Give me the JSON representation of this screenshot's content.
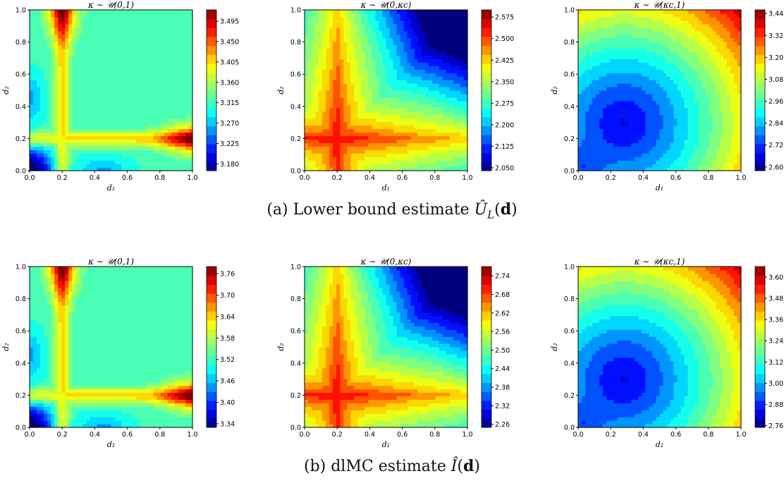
{
  "captions": {
    "a": {
      "label": "(a) Lower bound estimate ",
      "math": "Û",
      "sub": "L",
      "arg_open": "(",
      "arg": "d",
      "arg_close": ")"
    },
    "b": {
      "label": "(b) dlMC estimate ",
      "math": "Î",
      "sub": "",
      "arg_open": "(",
      "arg": "d",
      "arg_close": ")"
    }
  },
  "chart_data": [
    {
      "type": "heatmap",
      "row": "a",
      "col": 1,
      "title": "κ ∼ 𝒰(0,1)",
      "xlabel": "d₁",
      "ylabel": "d₂",
      "xlim": [
        0,
        1
      ],
      "ylim": [
        0,
        1
      ],
      "xticks": [
        "0.0",
        "0.2",
        "0.4",
        "0.6",
        "0.8",
        "1.0"
      ],
      "yticks": [
        "0.0",
        "0.2",
        "0.4",
        "0.6",
        "0.8",
        "1.0"
      ],
      "colorbar_ticks": [
        "3.180",
        "3.225",
        "3.270",
        "3.315",
        "3.360",
        "3.405",
        "3.450",
        "3.495"
      ],
      "vmin": 3.165,
      "vmax": 3.52,
      "pattern": "cross"
    },
    {
      "type": "heatmap",
      "row": "a",
      "col": 2,
      "title": "κ ∼ 𝒰(0,κc)",
      "xlabel": "d₁",
      "ylabel": "d₂",
      "xlim": [
        0,
        1
      ],
      "ylim": [
        0,
        1
      ],
      "xticks": [
        "0.0",
        "0.2",
        "0.4",
        "0.6",
        "0.8",
        "1.0"
      ],
      "yticks": [
        "0.0",
        "0.2",
        "0.4",
        "0.6",
        "0.8",
        "1.0"
      ],
      "colorbar_ticks": [
        "2.050",
        "2.125",
        "2.200",
        "2.275",
        "2.350",
        "2.425",
        "2.500",
        "2.575"
      ],
      "vmin": 2.04,
      "vmax": 2.6,
      "pattern": "star"
    },
    {
      "type": "heatmap",
      "row": "a",
      "col": 3,
      "title": "κ ∼ 𝒰(κc,1)",
      "xlabel": "d₁",
      "ylabel": "d₂",
      "xlim": [
        0,
        1
      ],
      "ylim": [
        0,
        1
      ],
      "xticks": [
        "0.0",
        "0.2",
        "0.4",
        "0.6",
        "0.8",
        "1.0"
      ],
      "yticks": [
        "0.0",
        "0.2",
        "0.4",
        "0.6",
        "0.8",
        "1.0"
      ],
      "colorbar_ticks": [
        "2.60",
        "2.72",
        "2.84",
        "2.96",
        "3.08",
        "3.20",
        "3.32",
        "3.44"
      ],
      "vmin": 2.58,
      "vmax": 3.46,
      "pattern": "corner"
    },
    {
      "type": "heatmap",
      "row": "b",
      "col": 1,
      "title": "κ ∼ 𝒰(0,1)",
      "xlabel": "d₁",
      "ylabel": "d₂",
      "xlim": [
        0,
        1
      ],
      "ylim": [
        0,
        1
      ],
      "xticks": [
        "0.0",
        "0.2",
        "0.4",
        "0.6",
        "0.8",
        "1.0"
      ],
      "yticks": [
        "0.0",
        "0.2",
        "0.4",
        "0.6",
        "0.8",
        "1.0"
      ],
      "colorbar_ticks": [
        "3.34",
        "3.40",
        "3.46",
        "3.52",
        "3.58",
        "3.64",
        "3.70",
        "3.76"
      ],
      "vmin": 3.33,
      "vmax": 3.78,
      "pattern": "cross"
    },
    {
      "type": "heatmap",
      "row": "b",
      "col": 2,
      "title": "κ ∼ 𝒰(0,κc)",
      "xlabel": "d₁",
      "ylabel": "d₂",
      "xlim": [
        0,
        1
      ],
      "ylim": [
        0,
        1
      ],
      "xticks": [
        "0.0",
        "0.2",
        "0.4",
        "0.6",
        "0.8",
        "1.0"
      ],
      "yticks": [
        "0.0",
        "0.2",
        "0.4",
        "0.6",
        "0.8",
        "1.0"
      ],
      "colorbar_ticks": [
        "2.26",
        "2.32",
        "2.38",
        "2.44",
        "2.50",
        "2.56",
        "2.62",
        "2.68",
        "2.74"
      ],
      "vmin": 2.25,
      "vmax": 2.77,
      "pattern": "star"
    },
    {
      "type": "heatmap",
      "row": "b",
      "col": 3,
      "title": "κ ∼ 𝒰(κc,1)",
      "xlabel": "d₁",
      "ylabel": "d₂",
      "xlim": [
        0,
        1
      ],
      "ylim": [
        0,
        1
      ],
      "xticks": [
        "0.0",
        "0.2",
        "0.4",
        "0.6",
        "0.8",
        "1.0"
      ],
      "yticks": [
        "0.0",
        "0.2",
        "0.4",
        "0.6",
        "0.8",
        "1.0"
      ],
      "colorbar_ticks": [
        "2.76",
        "2.88",
        "3.00",
        "3.12",
        "3.24",
        "3.36",
        "3.48",
        "3.60"
      ],
      "vmin": 2.75,
      "vmax": 3.66,
      "pattern": "corner"
    }
  ],
  "colormap": [
    "#00007f",
    "#0000ff",
    "#00ffff",
    "#ffff00",
    "#ff0000",
    "#7f0000"
  ]
}
